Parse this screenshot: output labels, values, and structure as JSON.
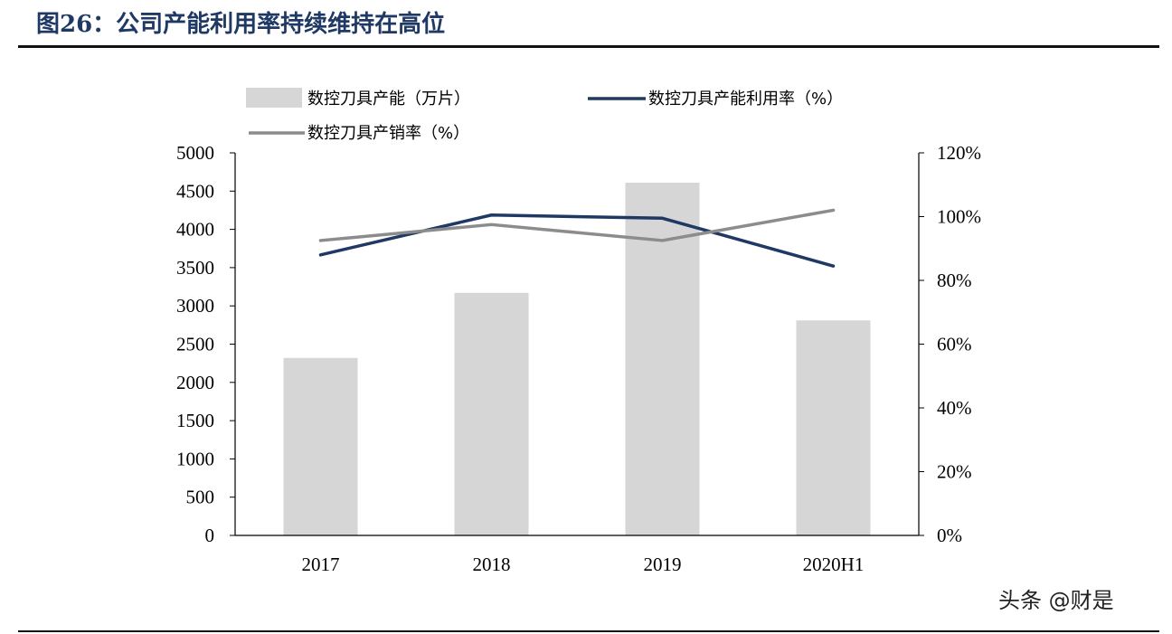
{
  "figure_title": "图26：公司产能利用率持续维持在高位",
  "watermark": "头条 @财是",
  "colors": {
    "bar": "#d6d6d6",
    "utilization_line": "#1f3864",
    "sales_line": "#8c8c8c",
    "axis": "#000000"
  },
  "chart_data": {
    "type": "bar",
    "categories": [
      "2017",
      "2018",
      "2019",
      "2020H1"
    ],
    "series": [
      {
        "name": "数控刀具产能（万片）",
        "type": "bar",
        "axis": "left",
        "values": [
          2320,
          3170,
          4610,
          2810
        ]
      },
      {
        "name": "数控刀具产能利用率（%）",
        "type": "line",
        "axis": "right",
        "values": [
          88,
          100.5,
          99.5,
          84.5
        ]
      },
      {
        "name": "数控刀具产销率（%）",
        "type": "line",
        "axis": "right",
        "values": [
          92.5,
          97.5,
          92.5,
          102
        ]
      }
    ],
    "y_left": {
      "min": 0,
      "max": 5000,
      "ticks": [
        "0",
        "500",
        "1000",
        "1500",
        "2000",
        "2500",
        "3000",
        "3500",
        "4000",
        "4500",
        "5000"
      ]
    },
    "y_right": {
      "min": 0,
      "max": 120,
      "ticks": [
        "0%",
        "20%",
        "40%",
        "60%",
        "80%",
        "100%",
        "120%"
      ]
    },
    "legend_position": "top",
    "grid": false
  }
}
